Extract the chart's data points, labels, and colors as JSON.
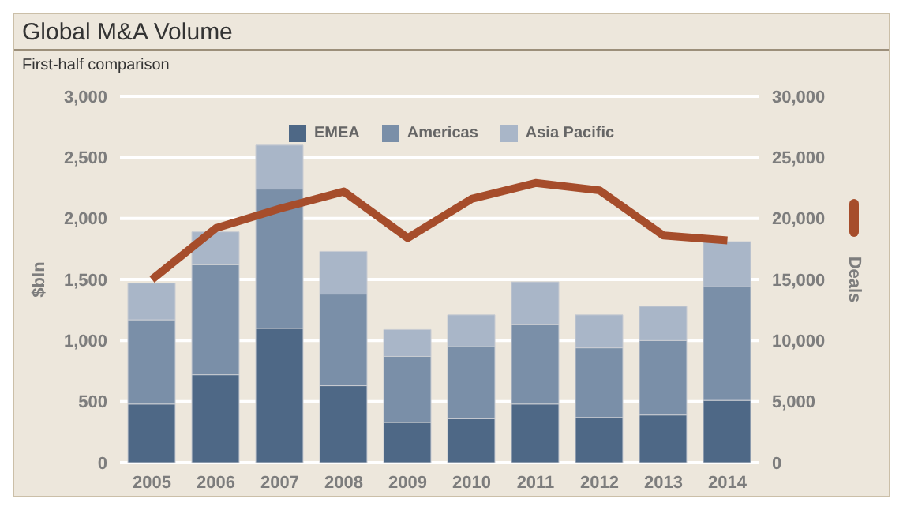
{
  "chart_data": {
    "type": "bar",
    "title": "Global M&A Volume",
    "subtitle": "First-half comparison",
    "ylabel": "$bln",
    "y2label": "Deals",
    "categories": [
      "2005",
      "2006",
      "2007",
      "2008",
      "2009",
      "2010",
      "2011",
      "2012",
      "2013",
      "2014"
    ],
    "stacked": true,
    "series": [
      {
        "name": "EMEA",
        "color": "#4e6886",
        "values": [
          480,
          720,
          1100,
          630,
          330,
          360,
          480,
          370,
          390,
          510
        ]
      },
      {
        "name": "Americas",
        "color": "#7a8fa8",
        "values": [
          690,
          900,
          1140,
          750,
          540,
          590,
          650,
          570,
          610,
          930
        ]
      },
      {
        "name": "Asia Pacific",
        "color": "#a9b6c8",
        "values": [
          300,
          270,
          360,
          350,
          220,
          260,
          350,
          270,
          280,
          370
        ]
      },
      {
        "type": "line",
        "axis": "y2",
        "color": "#a64d2b",
        "values": [
          15000,
          19200,
          20800,
          22200,
          18400,
          21600,
          22900,
          22300,
          18600,
          18200
        ]
      }
    ],
    "ylim": [
      0,
      3000
    ],
    "yticks": [
      0,
      500,
      {
        "value": 1000,
        "label": "1,000"
      },
      {
        "value": 1500,
        "label": "1,500"
      },
      {
        "value": 2000,
        "label": "2,000"
      },
      {
        "value": 2500,
        "label": "2,500"
      },
      {
        "value": 3000,
        "label": "3,000"
      }
    ],
    "y2lim": [
      0,
      30000
    ],
    "y2ticks": [
      0,
      {
        "value": 5000,
        "label": "5,000"
      },
      {
        "value": 10000,
        "label": "10,000"
      },
      {
        "value": 15000,
        "label": "15,000"
      },
      {
        "value": 20000,
        "label": "20,000"
      },
      {
        "value": 25000,
        "label": "25,000"
      },
      {
        "value": 30000,
        "label": "30,000"
      }
    ],
    "grid": "y",
    "legend": "top",
    "marker": "none",
    "line_style": "solid"
  }
}
